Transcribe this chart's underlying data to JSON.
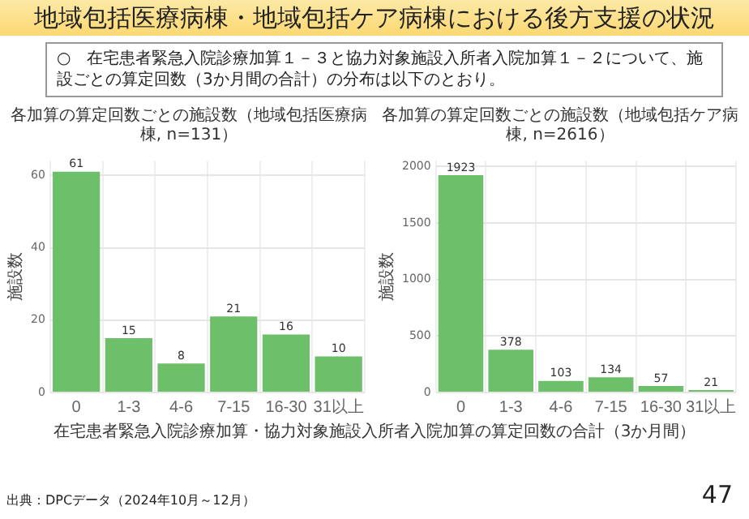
{
  "chart_data": [
    {
      "type": "other",
      "title": "地域包括医療病棟・地域包括ケア病棟における後方支援の状況",
      "annotations": [
        "○　在宅患者緊急入院診療加算１－３と協力対象施設入所者入院加算１－２について、施設ごとの算定回数（3か月間の合計）の分布は以下のとおり。",
        "出典：DPCデータ（2024年10月～12月）",
        "47"
      ]
    },
    {
      "type": "bar",
      "title": "各加算の算定回数ごとの施設数（地域包括医療病棟, n=131）",
      "xlabel": "在宅患者緊急入院診療加算・協力対象施設入所者入院加算の算定回数の合計（3か月間）",
      "ylabel": "施設数",
      "categories": [
        "0",
        "1-3",
        "4-6",
        "7-15",
        "16-30",
        "31以上"
      ],
      "values": [
        61,
        15,
        8,
        21,
        16,
        10
      ],
      "color": "#6dbf6a",
      "ylim": [
        0,
        64
      ],
      "yticks": [
        0,
        20,
        40,
        60
      ],
      "grid": true,
      "data_labels": true
    },
    {
      "type": "bar",
      "title": "各加算の算定回数ごとの施設数（地域包括ケア病棟, n=2616）",
      "ylabel": "施設数",
      "categories": [
        "0",
        "1-3",
        "4-6",
        "7-15",
        "16-30",
        "31以上"
      ],
      "values": [
        1923,
        378,
        103,
        134,
        57,
        21
      ],
      "color": "#6dbf6a",
      "ylim": [
        0,
        2050
      ],
      "yticks": [
        0,
        500,
        1000,
        1500,
        2000
      ],
      "grid": true,
      "data_labels": true
    }
  ]
}
